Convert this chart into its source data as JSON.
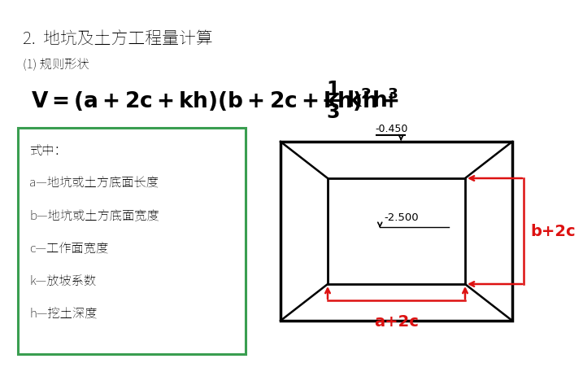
{
  "bg_color": "#ffffff",
  "title1": "2.  地坑及土方工程量计算",
  "title2": "(1) 规则形状",
  "box_text_lines": [
    "式中：",
    "a—地坑或土方底面长度",
    "b—地坑或土方底面宽度",
    "c—工作面宽度",
    "k—放坡系数",
    "h—挖土深度"
  ],
  "box_color": "#3a9e50",
  "dim_color": "#dd1111",
  "label_0450": "-0.450",
  "label_2500": "-2.500",
  "label_b2c": "b+2c",
  "label_a2c": "a+2c"
}
